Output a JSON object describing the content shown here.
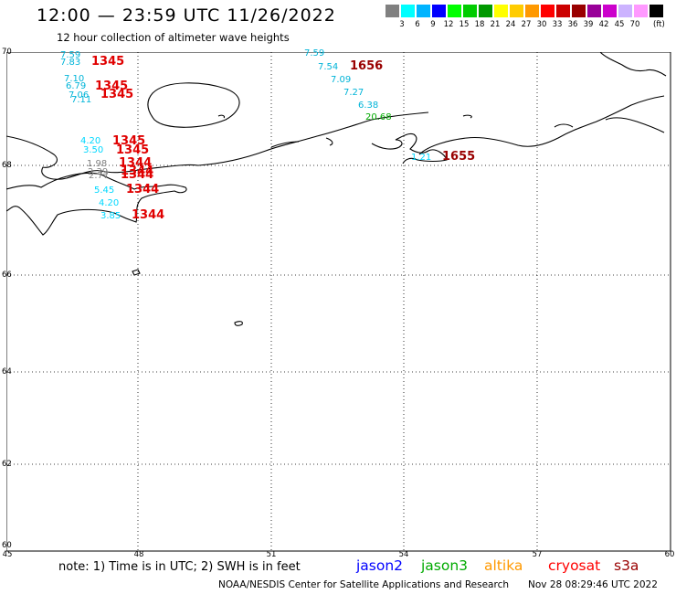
{
  "header": {
    "title": "12:00 — 23:59 UTC 11/26/2022",
    "subtitle": "12 hour collection of altimeter wave heights"
  },
  "color_scale": {
    "colors": [
      "#808080",
      "#00ffff",
      "#00b4ff",
      "#0000ff",
      "#00ff00",
      "#00cc00",
      "#009900",
      "#ffff00",
      "#ffcc00",
      "#ff9900",
      "#ff0000",
      "#cc0000",
      "#990000",
      "#990099",
      "#cc00cc",
      "#ccb3ff",
      "#ff99ff",
      "#000000"
    ],
    "labels": [
      "3",
      "6",
      "9",
      "12",
      "15",
      "18",
      "21",
      "24",
      "27",
      "30",
      "33",
      "36",
      "39",
      "42",
      "45",
      "70"
    ],
    "unit": "(ft)"
  },
  "axes": {
    "lat_labels": [
      "70",
      "68",
      "66",
      "64",
      "62",
      "60"
    ],
    "lon_labels": [
      "45",
      "48",
      "51",
      "54",
      "57",
      "60"
    ]
  },
  "observations": [
    {
      "text": "7.59",
      "color": "#00b4d8"
    },
    {
      "text": "7.83",
      "color": "#00b4d8"
    },
    {
      "text": "7.10",
      "color": "#00b4d8"
    },
    {
      "text": "6.79",
      "color": "#00b4d8"
    },
    {
      "text": "7.06",
      "color": "#00b4d8"
    },
    {
      "text": "7.11",
      "color": "#00b4d8"
    },
    {
      "text": "4.20",
      "color": "#00d8ff"
    },
    {
      "text": "3.50",
      "color": "#00d8ff"
    },
    {
      "text": "1.98",
      "color": "#808080"
    },
    {
      "text": "2.39",
      "color": "#808080"
    },
    {
      "text": "2.77",
      "color": "#808080"
    },
    {
      "text": "5.45",
      "color": "#00d8ff"
    },
    {
      "text": "4.20",
      "color": "#00d8ff"
    },
    {
      "text": "3.85",
      "color": "#00d8ff"
    },
    {
      "text": "7.59",
      "color": "#00b4d8"
    },
    {
      "text": "7.54",
      "color": "#00b4d8"
    },
    {
      "text": "7.09",
      "color": "#00b4d8"
    },
    {
      "text": "7.27",
      "color": "#00b4d8"
    },
    {
      "text": "6.38",
      "color": "#00b4d8"
    },
    {
      "text": "20.68",
      "color": "#00aa00"
    },
    {
      "text": "1.21",
      "color": "#00d8ff"
    }
  ],
  "pass_times": [
    {
      "text": "1345",
      "color": "#e00000"
    },
    {
      "text": "1345",
      "color": "#e00000"
    },
    {
      "text": "1345",
      "color": "#e00000"
    },
    {
      "text": "1345",
      "color": "#e00000"
    },
    {
      "text": "1345",
      "color": "#e00000"
    },
    {
      "text": "1344",
      "color": "#e00000"
    },
    {
      "text": "1344",
      "color": "#e00000"
    },
    {
      "text": "1344",
      "color": "#e00000"
    },
    {
      "text": "1344",
      "color": "#e00000"
    },
    {
      "text": "1344",
      "color": "#e00000"
    },
    {
      "text": "1656",
      "color": "#990000"
    },
    {
      "text": "1655",
      "color": "#990000"
    }
  ],
  "footer": {
    "note": "note:  1) Time is in UTC;  2) SWH is in feet",
    "satellites": [
      {
        "name": "jason2",
        "color": "#0000ff"
      },
      {
        "name": "jason3",
        "color": "#00aa00"
      },
      {
        "name": "altika",
        "color": "#ff9900"
      },
      {
        "name": "cryosat",
        "color": "#ff0000"
      },
      {
        "name": "s3a",
        "color": "#990000"
      }
    ],
    "credit": "NOAA/NESDIS Center for Satellite Applications and Research",
    "timestamp": "Nov 28 08:29:46 UTC 2022"
  }
}
